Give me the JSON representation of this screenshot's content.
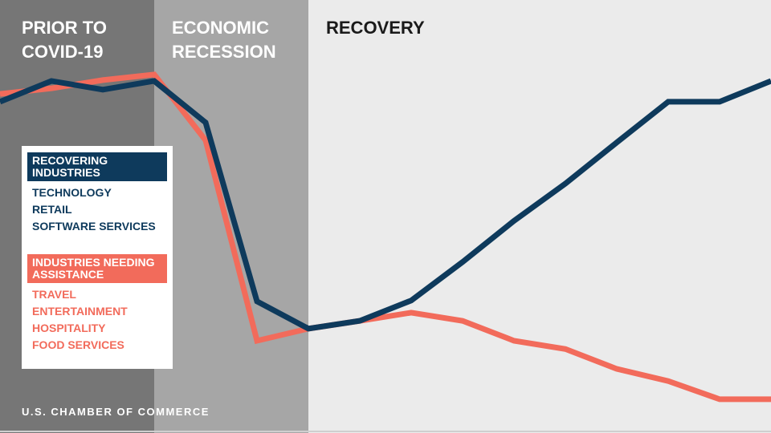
{
  "chart_data": {
    "type": "line",
    "phases": [
      {
        "lines": [
          "PRIOR TO",
          "COVID-19"
        ],
        "color": "#767676",
        "text_color": "#ffffff"
      },
      {
        "lines": [
          "ECONOMIC",
          "RECESSION"
        ],
        "color": "#a6a6a6",
        "text_color": "#ffffff"
      },
      {
        "lines": [
          "RECOVERY"
        ],
        "color": "#ebebeb",
        "text_color": "#1a1a1a"
      }
    ],
    "series": [
      {
        "name": "INDUSTRIES NEEDING ASSISTANCE",
        "color": "#f26b5b",
        "items": [
          "TRAVEL",
          "ENTERTAINMENT",
          "HOSPITALITY",
          "FOOD SERVICES"
        ],
        "values": [
          78.3,
          79.6,
          81.5,
          82.8,
          67.6,
          21.3,
          24.1,
          25.9,
          27.8,
          25.9,
          21.3,
          19.4,
          14.8,
          12,
          7.8,
          7.8
        ]
      },
      {
        "name": "RECOVERING INDUSTRIES",
        "color": "#0e3a5c",
        "items": [
          "TECHNOLOGY",
          "RETAIL",
          "SOFTWARE SERVICES"
        ],
        "values": [
          76.5,
          81.3,
          79.3,
          81.3,
          71.7,
          30.4,
          24.1,
          25.9,
          30.6,
          39.5,
          49,
          57.6,
          67.1,
          76.5,
          76.5,
          81.3
        ]
      }
    ],
    "ylim": [
      0,
      100
    ],
    "footer": "U.S. CHAMBER OF COMMERCE"
  }
}
